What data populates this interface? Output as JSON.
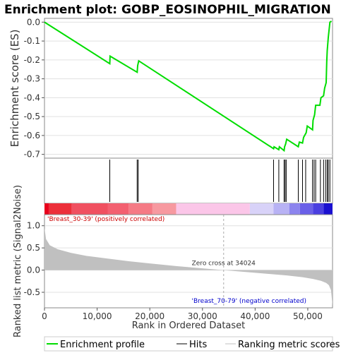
{
  "chart_data": {
    "type": "line",
    "title": "Enrichment plot: GOBP_EOSINOPHIL_MIGRATION",
    "es_panel": {
      "ylabel": "Enrichment score (ES)",
      "ylim": [
        -0.72,
        0.02
      ],
      "yticks": [
        0.0,
        -0.1,
        -0.2,
        -0.3,
        -0.4,
        -0.5,
        -0.6,
        -0.7
      ],
      "ytick_labels": [
        "0.0",
        "-0.1",
        "-0.2",
        "-0.3",
        "-0.4",
        "-0.5",
        "-0.6",
        "-0.7"
      ],
      "series": [
        {
          "name": "Enrichment profile",
          "color": "#00dd00",
          "x": [
            0,
            12400,
            12450,
            17600,
            17700,
            17900,
            43500,
            43600,
            44500,
            44600,
            45500,
            45600,
            45800,
            46000,
            48200,
            48400,
            49000,
            49200,
            49700,
            49900,
            50900,
            51000,
            51300,
            51500,
            52300,
            52500,
            53000,
            53200,
            53500,
            53600,
            53700,
            53900,
            54200,
            54500
          ],
          "y": [
            0.0,
            -0.22,
            -0.18,
            -0.265,
            -0.23,
            -0.205,
            -0.67,
            -0.66,
            -0.675,
            -0.66,
            -0.68,
            -0.66,
            -0.645,
            -0.62,
            -0.66,
            -0.635,
            -0.64,
            -0.61,
            -0.585,
            -0.55,
            -0.57,
            -0.52,
            -0.49,
            -0.44,
            -0.44,
            -0.4,
            -0.39,
            -0.35,
            -0.32,
            -0.21,
            -0.15,
            -0.08,
            0.0,
            0.005
          ]
        }
      ]
    },
    "hits": {
      "name": "Hits",
      "positions": [
        12400,
        17600,
        17800,
        43500,
        44500,
        45500,
        45700,
        45900,
        48200,
        49000,
        49600,
        50900,
        51200,
        51500,
        52400,
        53000,
        53400,
        53700,
        53900,
        54200
      ]
    },
    "rank_panel": {
      "ylabel": "Ranked list metric (Signal2Noise)",
      "ylim": [
        -0.85,
        1.25
      ],
      "yticks": [
        1.0,
        0.5,
        0.0,
        -0.5
      ],
      "ytick_labels": [
        "1.0",
        "0.5",
        "0.0",
        "-0.5"
      ],
      "metric_name": "Ranking metric scores",
      "fill_color": "#c0c0c0",
      "x": [
        0,
        300,
        1000,
        2500,
        5000,
        8000,
        12000,
        16000,
        20000,
        25000,
        30000,
        34024,
        38000,
        42000,
        46000,
        49000,
        51000,
        52500,
        53500,
        54000,
        54400,
        54700
      ],
      "y": [
        0.95,
        0.7,
        0.56,
        0.47,
        0.39,
        0.32,
        0.26,
        0.2,
        0.15,
        0.09,
        0.04,
        0.0,
        -0.04,
        -0.08,
        -0.12,
        -0.16,
        -0.2,
        -0.24,
        -0.29,
        -0.34,
        -0.45,
        -0.8
      ],
      "zero_cross_label": "Zero cross at 34024",
      "zero_cross_x": 34024,
      "positive_label": "'Breast_30-39' (positively correlated)",
      "negative_label": "'Breast_70-79' (negative correlated)",
      "positive_color": "#cc0000",
      "negative_color": "#0000cc"
    },
    "color_bar": {
      "segments": [
        {
          "to": 800,
          "color": "#e8001c"
        },
        {
          "to": 5200,
          "color": "#ec2f3a"
        },
        {
          "to": 12000,
          "color": "#f05060"
        },
        {
          "to": 16000,
          "color": "#f36070"
        },
        {
          "to": 20500,
          "color": "#f57a85"
        },
        {
          "to": 25000,
          "color": "#f799a0"
        },
        {
          "to": 39000,
          "color": "#fbc6e8"
        },
        {
          "to": 43500,
          "color": "#d8d2f8"
        },
        {
          "to": 46500,
          "color": "#b8b2f4"
        },
        {
          "to": 48500,
          "color": "#8c84ee"
        },
        {
          "to": 51000,
          "color": "#6a60e8"
        },
        {
          "to": 53000,
          "color": "#4a3fe0"
        },
        {
          "to": 54700,
          "color": "#1a10d0"
        }
      ]
    },
    "x_axis": {
      "label": "Rank in Ordered Dataset",
      "xlim": [
        0,
        54700
      ],
      "ticks": [
        0,
        10000,
        20000,
        30000,
        40000,
        50000
      ],
      "tick_labels": [
        "0",
        "10,000",
        "20,000",
        "30,000",
        "40,000",
        "50,000"
      ]
    },
    "legend": {
      "placement": "bottom",
      "entries": [
        {
          "label": "Enrichment profile",
          "color": "#00dd00"
        },
        {
          "label": "Hits",
          "color": "#000000"
        },
        {
          "label": "Ranking metric scores",
          "color": "#c0c0c0"
        }
      ]
    }
  }
}
